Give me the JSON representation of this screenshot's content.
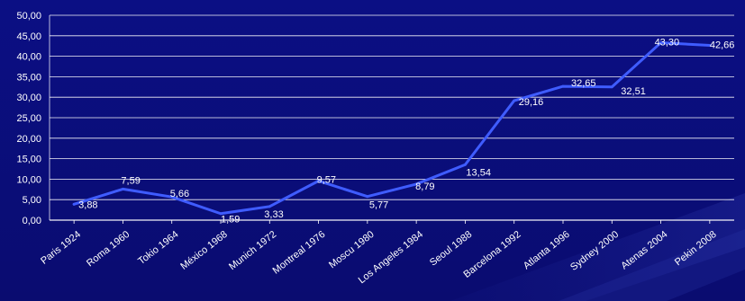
{
  "theme": {
    "background_top": "#0b0f84",
    "background_bottom": "#0a0c70",
    "grid_color": "#ffffff",
    "line_color": "#3f5cff",
    "text_color": "#ffffff"
  },
  "chart_data": {
    "type": "line",
    "categories": [
      "Paris 1924",
      "Roma 1960",
      "Tokio 1964",
      "México 1968",
      "Munich 1972",
      "Montreal 1976",
      "Moscu 1980",
      "Los Angeles 1984",
      "Seoul 1988",
      "Barcelona 1992",
      "Atlanta 1996",
      "Sydney 2000",
      "Atenas 2004",
      "Pekin 2008"
    ],
    "series": [
      {
        "values": [
          3.88,
          7.59,
          5.66,
          1.59,
          3.33,
          9.57,
          5.77,
          8.79,
          13.54,
          29.16,
          32.65,
          32.51,
          43.3,
          42.66
        ],
        "labels": [
          "3,88",
          "7,59",
          "5,66",
          "1,59",
          "3,33",
          "9,57",
          "5,77",
          "8,79",
          "13,54",
          "29,16",
          "32,65",
          "32,51",
          "43,30",
          "42,66"
        ]
      }
    ],
    "y_ticks": [
      "0,00",
      "5,00",
      "10,00",
      "15,00",
      "20,00",
      "25,00",
      "30,00",
      "35,00",
      "40,00",
      "45,00",
      "50,00"
    ],
    "ylim": [
      0,
      50
    ],
    "grid": true,
    "legend": "none",
    "title": "",
    "xlabel": "",
    "ylabel": ""
  }
}
